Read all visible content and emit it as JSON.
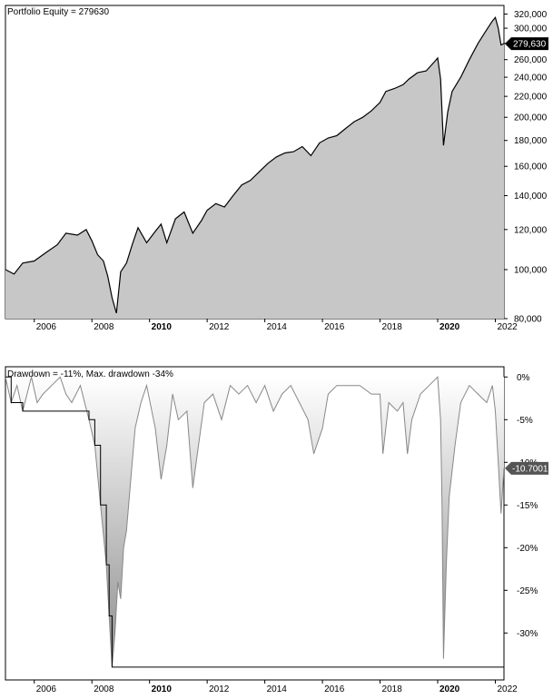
{
  "chart_data": [
    {
      "type": "area",
      "title": "Portfolio Equity = 279630",
      "last_value_label": "279,630",
      "y_scale": "log",
      "ylim": [
        80000,
        330000
      ],
      "y_ticks": [
        {
          "value": 80000,
          "label": "80,000"
        },
        {
          "value": 100000,
          "label": "100,000"
        },
        {
          "value": 120000,
          "label": "120,000"
        },
        {
          "value": 140000,
          "label": "140,000"
        },
        {
          "value": 160000,
          "label": "160,000"
        },
        {
          "value": 180000,
          "label": "180,000"
        },
        {
          "value": 200000,
          "label": "200,000"
        },
        {
          "value": 220000,
          "label": "220,000"
        },
        {
          "value": 240000,
          "label": "240,000"
        },
        {
          "value": 260000,
          "label": "260,000"
        },
        {
          "value": 280000,
          "label": "280,000"
        },
        {
          "value": 300000,
          "label": "300,000"
        },
        {
          "value": 320000,
          "label": "320,000"
        }
      ],
      "x_ticks": [
        {
          "value": 2006,
          "label": "2006",
          "bold": false
        },
        {
          "value": 2008,
          "label": "2008",
          "bold": false
        },
        {
          "value": 2010,
          "label": "2010",
          "bold": true
        },
        {
          "value": 2012,
          "label": "2012",
          "bold": false
        },
        {
          "value": 2014,
          "label": "2014",
          "bold": false
        },
        {
          "value": 2016,
          "label": "2016",
          "bold": false
        },
        {
          "value": 2018,
          "label": "2018",
          "bold": false
        },
        {
          "value": 2020,
          "label": "2020",
          "bold": true
        },
        {
          "value": 2022,
          "label": "2022",
          "bold": false
        }
      ],
      "xlim": [
        2005.0,
        2022.3
      ],
      "x": [
        2005.0,
        2005.3,
        2005.6,
        2006.0,
        2006.4,
        2006.8,
        2007.1,
        2007.5,
        2007.8,
        2008.0,
        2008.2,
        2008.4,
        2008.55,
        2008.7,
        2008.85,
        2009.0,
        2009.2,
        2009.4,
        2009.6,
        2009.9,
        2010.2,
        2010.4,
        2010.6,
        2010.9,
        2011.2,
        2011.5,
        2011.8,
        2012.0,
        2012.3,
        2012.6,
        2012.9,
        2013.2,
        2013.5,
        2013.8,
        2014.1,
        2014.4,
        2014.7,
        2015.0,
        2015.3,
        2015.6,
        2015.9,
        2016.2,
        2016.5,
        2016.8,
        2017.1,
        2017.4,
        2017.7,
        2018.0,
        2018.2,
        2018.5,
        2018.8,
        2019.0,
        2019.3,
        2019.6,
        2019.9,
        2020.0,
        2020.1,
        2020.2,
        2020.35,
        2020.5,
        2020.8,
        2021.1,
        2021.4,
        2021.7,
        2021.9,
        2022.0,
        2022.1,
        2022.2,
        2022.3
      ],
      "y": [
        100000,
        98000,
        103000,
        104000,
        108000,
        112000,
        118000,
        117000,
        120000,
        114000,
        107000,
        104000,
        97000,
        88000,
        82000,
        99000,
        103000,
        112000,
        121000,
        113000,
        119000,
        123000,
        113000,
        126000,
        130000,
        118000,
        125000,
        131000,
        135000,
        133000,
        140000,
        147000,
        150000,
        156000,
        162000,
        167000,
        170000,
        171000,
        175000,
        168000,
        178000,
        182000,
        184000,
        190000,
        196000,
        200000,
        206000,
        214000,
        225000,
        228000,
        232000,
        238000,
        245000,
        247000,
        258000,
        262000,
        238000,
        176000,
        205000,
        225000,
        240000,
        260000,
        280000,
        298000,
        310000,
        315000,
        300000,
        278000,
        279630
      ],
      "colors": {
        "fill": "#c7c7c7",
        "line": "#000000",
        "badge": "#000000"
      }
    },
    {
      "type": "area",
      "title": "Drawdown = -11%, Max. drawdown -34%",
      "last_value_label": "-10.7001",
      "ylim": [
        -35.5,
        1.2
      ],
      "y_ticks": [
        {
          "value": 0,
          "label": "0%"
        },
        {
          "value": -5,
          "label": "-5%"
        },
        {
          "value": -10,
          "label": "-10%"
        },
        {
          "value": -15,
          "label": "-15%"
        },
        {
          "value": -20,
          "label": "-20%"
        },
        {
          "value": -25,
          "label": "-25%"
        },
        {
          "value": -30,
          "label": "-30%"
        }
      ],
      "x_ticks": [
        {
          "value": 2006,
          "label": "2006",
          "bold": false
        },
        {
          "value": 2008,
          "label": "2008",
          "bold": false
        },
        {
          "value": 2010,
          "label": "2010",
          "bold": true
        },
        {
          "value": 2012,
          "label": "2012",
          "bold": false
        },
        {
          "value": 2014,
          "label": "2014",
          "bold": false
        },
        {
          "value": 2016,
          "label": "2016",
          "bold": false
        },
        {
          "value": 2018,
          "label": "2018",
          "bold": false
        },
        {
          "value": 2020,
          "label": "2020",
          "bold": true
        },
        {
          "value": 2022,
          "label": "2022",
          "bold": false
        }
      ],
      "xlim": [
        2005.0,
        2022.3
      ],
      "x": [
        2005.0,
        2005.2,
        2005.4,
        2005.6,
        2005.9,
        2006.1,
        2006.3,
        2006.6,
        2006.9,
        2007.1,
        2007.3,
        2007.6,
        2007.9,
        2008.1,
        2008.3,
        2008.5,
        2008.6,
        2008.7,
        2008.8,
        2008.9,
        2009.0,
        2009.1,
        2009.2,
        2009.4,
        2009.5,
        2009.7,
        2009.9,
        2010.2,
        2010.4,
        2010.6,
        2010.8,
        2011.0,
        2011.3,
        2011.5,
        2011.7,
        2011.9,
        2012.2,
        2012.5,
        2012.8,
        2013.1,
        2013.4,
        2013.7,
        2014.0,
        2014.3,
        2014.6,
        2014.9,
        2015.2,
        2015.5,
        2015.7,
        2016.0,
        2016.2,
        2016.5,
        2016.9,
        2017.3,
        2017.7,
        2018.0,
        2018.1,
        2018.3,
        2018.6,
        2018.8,
        2018.95,
        2019.1,
        2019.4,
        2019.7,
        2020.0,
        2020.1,
        2020.15,
        2020.2,
        2020.3,
        2020.4,
        2020.6,
        2020.8,
        2021.1,
        2021.4,
        2021.7,
        2021.9,
        2022.0,
        2022.1,
        2022.2,
        2022.3
      ],
      "y": [
        0,
        -3,
        -1,
        -4,
        0,
        -3,
        -2,
        -1,
        0,
        -2,
        -3,
        -1,
        -5,
        -8,
        -15,
        -22,
        -28,
        -34,
        -30,
        -24,
        -26,
        -20,
        -18,
        -10,
        -6,
        -3,
        -1,
        -6,
        -12,
        -8,
        -2,
        -5,
        -4,
        -13,
        -8,
        -3,
        -2,
        -5,
        -1,
        -2,
        -1,
        -3,
        -1,
        -4,
        -2,
        -1,
        -3,
        -5,
        -9,
        -6,
        -2,
        -1,
        -1,
        -1,
        -2,
        -2,
        -9,
        -3,
        -4,
        -3,
        -9,
        -5,
        -2,
        -1,
        0,
        -5,
        -15,
        -33,
        -22,
        -14,
        -8,
        -3,
        -1,
        -2,
        -3,
        -1,
        -4,
        -10,
        -16,
        -10.7
      ],
      "colors": {
        "fill_top": "#ffffff",
        "fill_bottom": "#8c8c8c",
        "line": "#888888",
        "max_line": "#000000",
        "badge": "#555555"
      }
    }
  ]
}
